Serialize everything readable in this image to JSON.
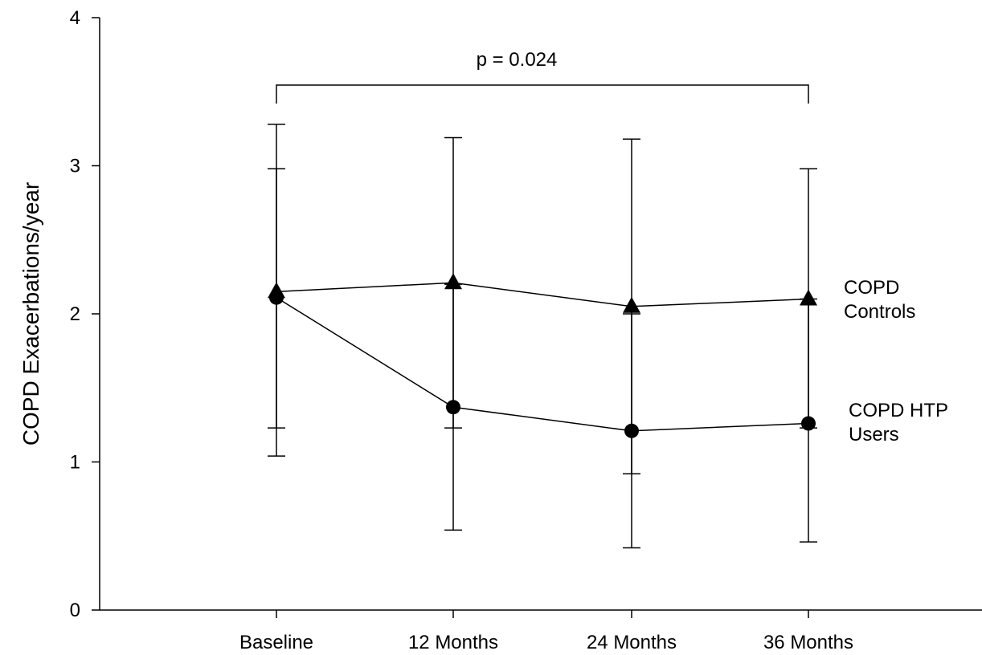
{
  "chart_data": {
    "type": "line",
    "title": "",
    "xlabel": "",
    "ylabel": "COPD Exacerbations/year",
    "categories": [
      "Baseline",
      "12 Months",
      "24 Months",
      "36 Months"
    ],
    "ylim": [
      0,
      4
    ],
    "yticks": [
      "0",
      "1",
      "2",
      "3",
      "4"
    ],
    "grid": false,
    "series": [
      {
        "name": "COPD Controls",
        "name_lines": [
          "COPD",
          "Controls"
        ],
        "marker": "triangle",
        "values": [
          2.15,
          2.21,
          2.05,
          2.1
        ],
        "error_low": [
          1.04,
          1.23,
          0.92,
          1.23
        ],
        "error_high": [
          3.28,
          3.19,
          3.18,
          2.98
        ]
      },
      {
        "name": "COPD HTP Users",
        "name_lines": [
          "COPD HTP",
          "Users"
        ],
        "marker": "circle",
        "values": [
          2.11,
          1.37,
          1.21,
          1.26
        ],
        "error_low": [
          1.23,
          0.54,
          0.42,
          0.46
        ],
        "error_high": [
          2.98,
          2.2,
          2.0,
          2.1
        ]
      }
    ],
    "annotations": [
      {
        "text": "p = 0.024",
        "from": "Baseline",
        "to": "36 Months"
      }
    ]
  }
}
